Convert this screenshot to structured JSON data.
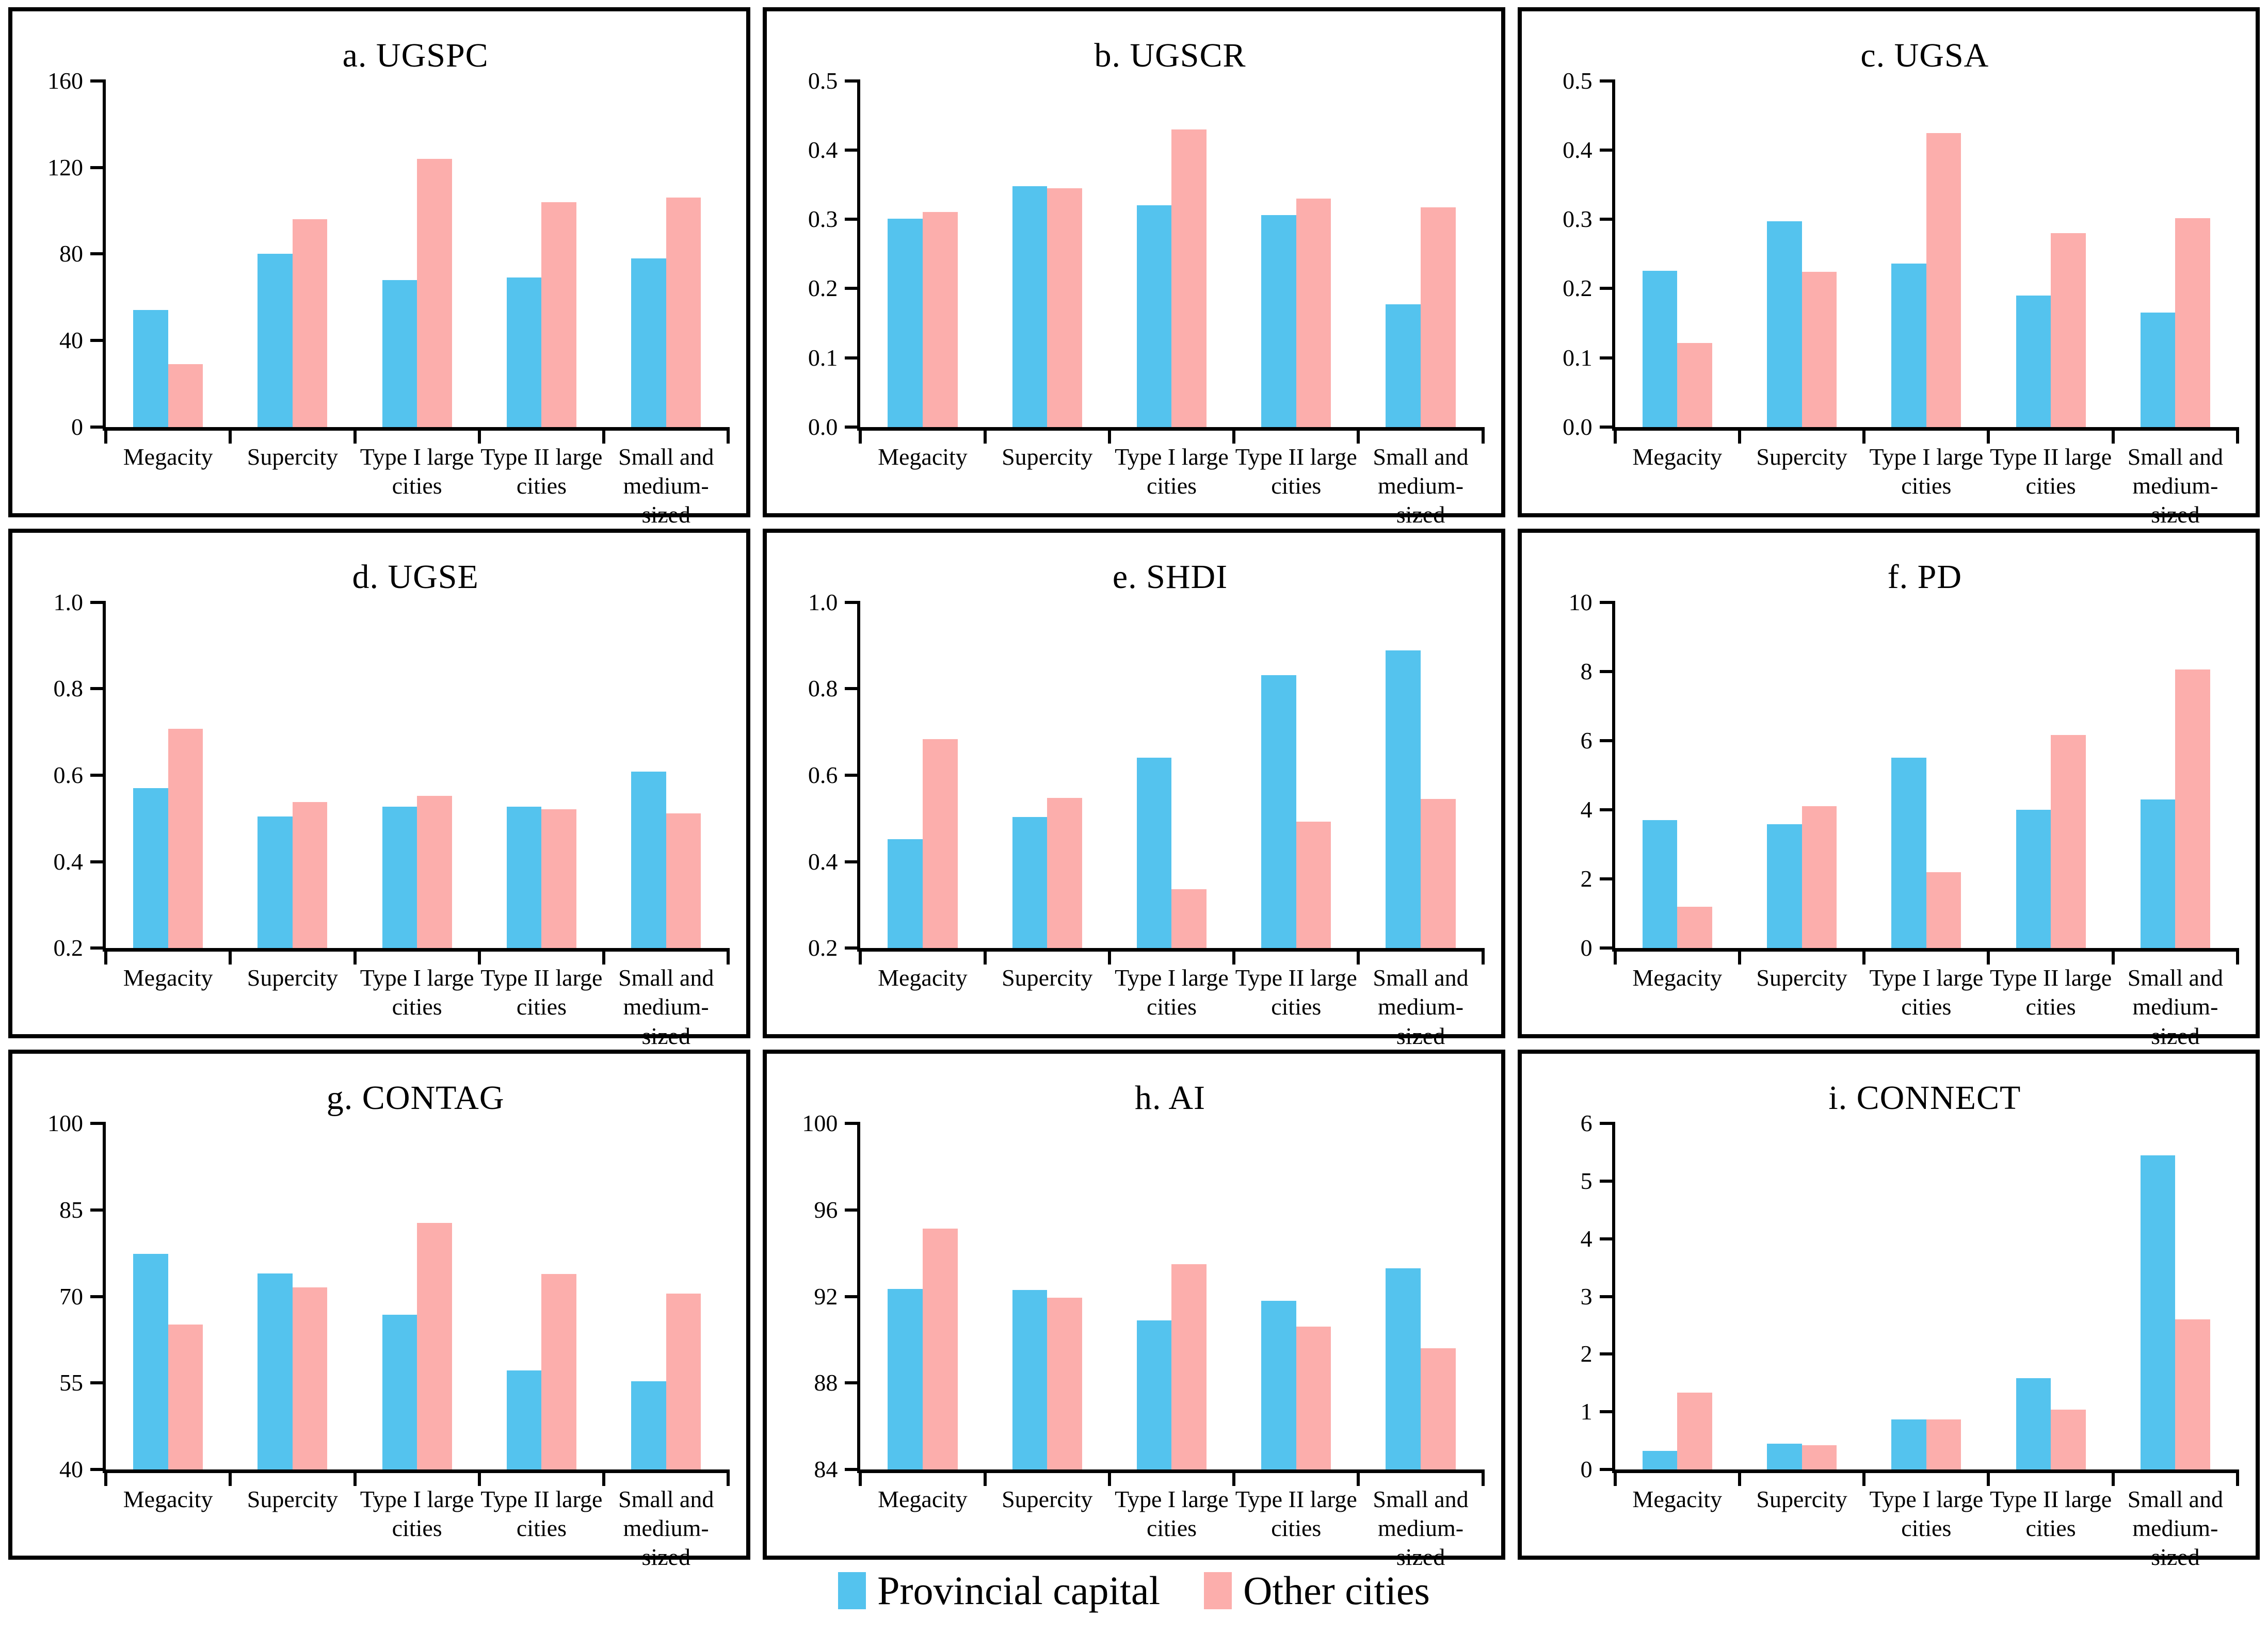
{
  "legend": {
    "items": [
      {
        "label": "Provincial capital",
        "color": "#54c3ee"
      },
      {
        "label": "Other cities",
        "color": "#fcaeac"
      }
    ]
  },
  "chart_data": [
    {
      "type": "bar",
      "title": "a. UGSPC",
      "categories": [
        "Megacity",
        "Supercity",
        "Type I large\ncities",
        "Type II large\ncities",
        "Small and\nmedium-sized"
      ],
      "series": [
        {
          "name": "Provincial capital",
          "values": [
            54,
            80,
            68,
            69,
            78
          ]
        },
        {
          "name": "Other cities",
          "values": [
            29,
            96,
            124,
            104,
            106
          ]
        }
      ],
      "ylim": [
        0,
        160
      ],
      "yticks": [
        0,
        40,
        80,
        120,
        160
      ],
      "ydecimals": 0
    },
    {
      "type": "bar",
      "title": "b. UGSCR",
      "categories": [
        "Megacity",
        "Supercity",
        "Type I large\ncities",
        "Type II large\ncities",
        "Small and\nmedium-sized"
      ],
      "series": [
        {
          "name": "Provincial capital",
          "values": [
            0.301,
            0.348,
            0.32,
            0.306,
            0.177
          ]
        },
        {
          "name": "Other cities",
          "values": [
            0.311,
            0.345,
            0.43,
            0.33,
            0.317
          ]
        }
      ],
      "ylim": [
        0,
        0.5
      ],
      "yticks": [
        0,
        0.1,
        0.2,
        0.3,
        0.4,
        0.5
      ],
      "ydecimals": 1
    },
    {
      "type": "bar",
      "title": "c. UGSA",
      "categories": [
        "Megacity",
        "Supercity",
        "Type I large\ncities",
        "Type II large\ncities",
        "Small and\nmedium-sized"
      ],
      "series": [
        {
          "name": "Provincial capital",
          "values": [
            0.226,
            0.297,
            0.236,
            0.19,
            0.165
          ]
        },
        {
          "name": "Other cities",
          "values": [
            0.121,
            0.224,
            0.425,
            0.28,
            0.302
          ]
        }
      ],
      "ylim": [
        0,
        0.5
      ],
      "yticks": [
        0,
        0.1,
        0.2,
        0.3,
        0.4,
        0.5
      ],
      "ydecimals": 1
    },
    {
      "type": "bar",
      "title": "d. UGSE",
      "categories": [
        "Megacity",
        "Supercity",
        "Type I large\ncities",
        "Type II large\ncities",
        "Small and\nmedium-sized"
      ],
      "series": [
        {
          "name": "Provincial capital",
          "values": [
            0.57,
            0.505,
            0.527,
            0.527,
            0.608
          ]
        },
        {
          "name": "Other cities",
          "values": [
            0.707,
            0.538,
            0.552,
            0.521,
            0.512
          ]
        }
      ],
      "ylim": [
        0.2,
        1.0
      ],
      "yticks": [
        0.2,
        0.4,
        0.6,
        0.8,
        1.0
      ],
      "ydecimals": 1
    },
    {
      "type": "bar",
      "title": "e. SHDI",
      "categories": [
        "Megacity",
        "Supercity",
        "Type I large\ncities",
        "Type II large\ncities",
        "Small and\nmedium-sized"
      ],
      "series": [
        {
          "name": "Provincial capital",
          "values": [
            0.452,
            0.503,
            0.641,
            0.831,
            0.889
          ]
        },
        {
          "name": "Other cities",
          "values": [
            0.683,
            0.548,
            0.336,
            0.493,
            0.545
          ]
        }
      ],
      "ylim": [
        0.2,
        1.0
      ],
      "yticks": [
        0.2,
        0.4,
        0.6,
        0.8,
        1.0
      ],
      "ydecimals": 1
    },
    {
      "type": "bar",
      "title": "f. PD",
      "categories": [
        "Megacity",
        "Supercity",
        "Type I large\ncities",
        "Type II large\ncities",
        "Small and\nmedium-sized"
      ],
      "series": [
        {
          "name": "Provincial capital",
          "values": [
            3.7,
            3.58,
            5.5,
            4.0,
            4.3
          ]
        },
        {
          "name": "Other cities",
          "values": [
            1.2,
            4.1,
            2.2,
            6.17,
            8.05
          ]
        }
      ],
      "ylim": [
        0,
        10
      ],
      "yticks": [
        0,
        2,
        4,
        6,
        8,
        10
      ],
      "ydecimals": 0
    },
    {
      "type": "bar",
      "title": "g. CONTAG",
      "categories": [
        "Megacity",
        "Supercity",
        "Type I large\ncities",
        "Type II large\ncities",
        "Small and\nmedium-sized"
      ],
      "series": [
        {
          "name": "Provincial capital",
          "values": [
            77.4,
            74.0,
            66.8,
            57.2,
            55.3
          ]
        },
        {
          "name": "Other cities",
          "values": [
            65.1,
            71.6,
            82.8,
            73.9,
            70.5
          ]
        }
      ],
      "ylim": [
        40,
        100
      ],
      "yticks": [
        40,
        55,
        70,
        85,
        100
      ],
      "ydecimals": 0
    },
    {
      "type": "bar",
      "title": "h. AI",
      "categories": [
        "Megacity",
        "Supercity",
        "Type I large\ncities",
        "Type II large\ncities",
        "Small and\nmedium-sized"
      ],
      "series": [
        {
          "name": "Provincial capital",
          "values": [
            92.35,
            92.3,
            90.9,
            91.8,
            93.3
          ]
        },
        {
          "name": "Other cities",
          "values": [
            95.15,
            91.95,
            93.5,
            90.6,
            89.6
          ]
        }
      ],
      "ylim": [
        84,
        100
      ],
      "yticks": [
        84,
        88,
        92,
        96,
        100
      ],
      "ydecimals": 0
    },
    {
      "type": "bar",
      "title": "i. CONNECT",
      "categories": [
        "Megacity",
        "Supercity",
        "Type I large\ncities",
        "Type II large\ncities",
        "Small and\nmedium-sized"
      ],
      "series": [
        {
          "name": "Provincial capital",
          "values": [
            0.32,
            0.45,
            0.87,
            1.58,
            5.45
          ]
        },
        {
          "name": "Other cities",
          "values": [
            1.33,
            0.42,
            0.87,
            1.04,
            2.6
          ]
        }
      ],
      "ylim": [
        0,
        6
      ],
      "yticks": [
        0,
        1,
        2,
        3,
        4,
        5,
        6
      ],
      "ydecimals": 0
    }
  ]
}
